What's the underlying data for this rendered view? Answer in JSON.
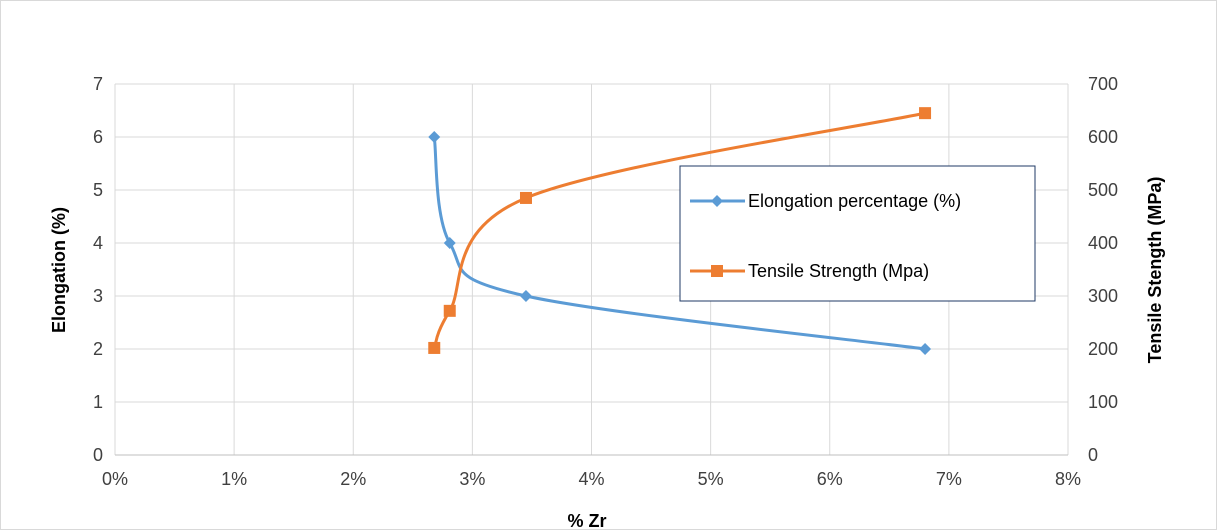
{
  "chart_data": {
    "type": "line",
    "title": "",
    "xlabel": "% Zr",
    "ylabel": "Elongation (%)",
    "y2label": "Tensile Stength (MPa)",
    "xlim": [
      0,
      0.08
    ],
    "ylim": [
      0,
      7
    ],
    "y2lim": [
      0,
      700
    ],
    "x_ticks": [
      "0%",
      "1%",
      "2%",
      "3%",
      "4%",
      "5%",
      "6%",
      "7%",
      "8%"
    ],
    "y_ticks": [
      "0",
      "1",
      "2",
      "3",
      "4",
      "5",
      "6",
      "7"
    ],
    "y2_ticks": [
      "0",
      "100",
      "200",
      "300",
      "400",
      "500",
      "600",
      "700"
    ],
    "grid": true,
    "legend_position": "right",
    "series": [
      {
        "name": "Elongation percentage (%)",
        "axis": "left",
        "color": "#5b9bd5",
        "marker": "diamond",
        "x": [
          0.0268,
          0.0281,
          0.0345,
          0.068
        ],
        "y": [
          6,
          4,
          3,
          2
        ]
      },
      {
        "name": "Tensile Strength (Mpa)",
        "axis": "right",
        "color": "#ed7d31",
        "marker": "square",
        "x": [
          0.0268,
          0.0281,
          0.0345,
          0.068
        ],
        "y": [
          202,
          272,
          485,
          645
        ]
      }
    ]
  }
}
